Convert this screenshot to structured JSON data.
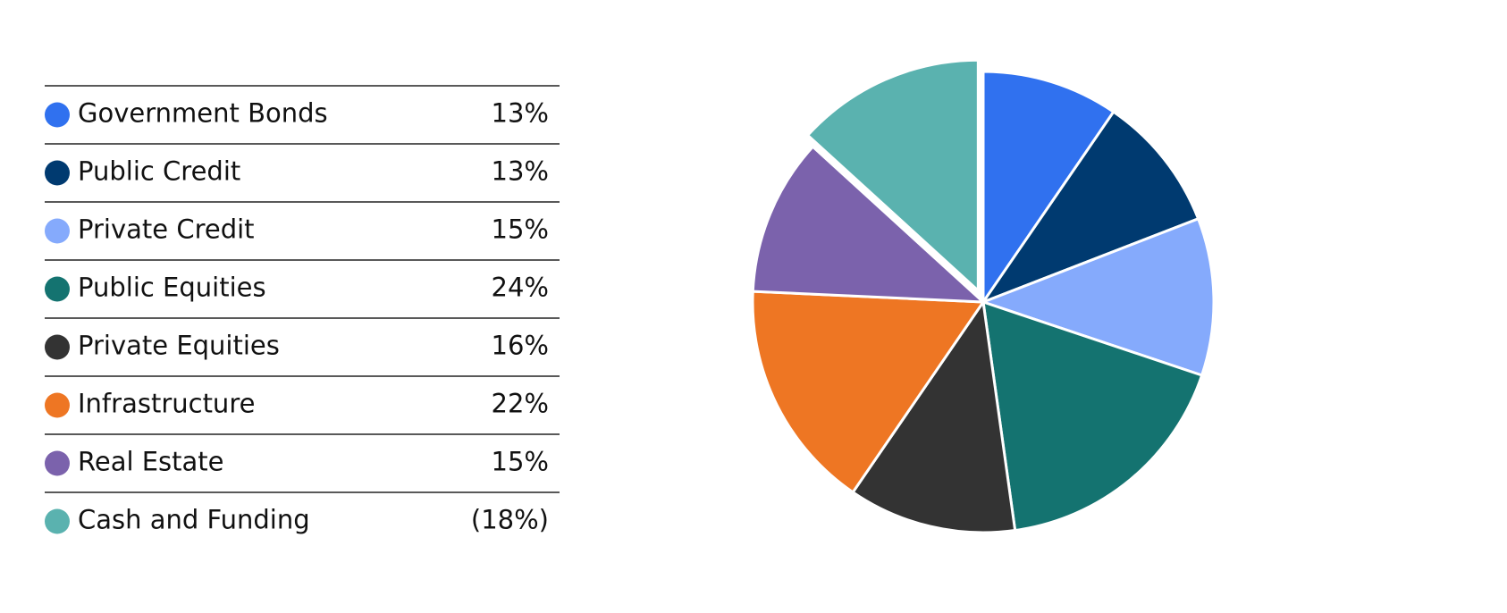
{
  "chart_data": {
    "type": "pie",
    "categories": [
      "Government Bonds",
      "Public Credit",
      "Private Credit",
      "Public Equities",
      "Private Equities",
      "Infrastructure",
      "Real Estate",
      "Cash and Funding"
    ],
    "values": [
      13,
      13,
      15,
      24,
      16,
      22,
      15,
      -18
    ],
    "value_labels": [
      "13%",
      "13%",
      "15%",
      "24%",
      "16%",
      "22%",
      "15%",
      "(18%)"
    ],
    "colors": [
      "#3071ef",
      "#003a70",
      "#85aafc",
      "#147370",
      "#333333",
      "#ee7623",
      "#7b62ac",
      "#5ab2af"
    ]
  }
}
